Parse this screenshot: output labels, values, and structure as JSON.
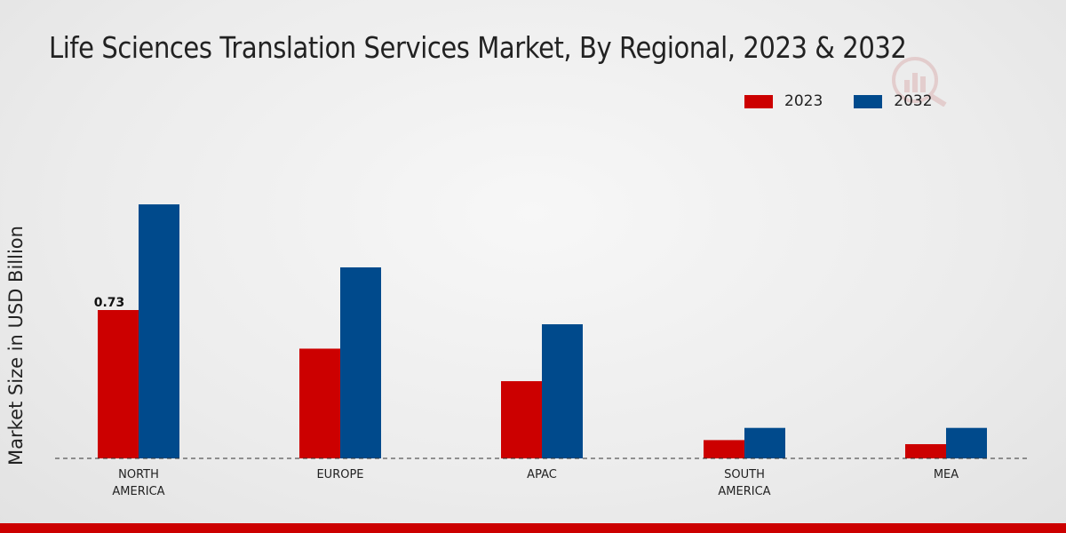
{
  "colors": {
    "series_2023": "#cc0000",
    "series_2032": "#004a8c",
    "accent_bar": "#cc0000"
  },
  "chart_data": {
    "type": "bar",
    "title": "Life Sciences Translation Services Market, By Regional, 2023 & 2032",
    "xlabel": "",
    "ylabel": "Market Size in USD Billion",
    "categories": [
      "NORTH AMERICA",
      "EUROPE",
      "APAC",
      "SOUTH AMERICA",
      "MEA"
    ],
    "category_lines": [
      [
        "NORTH",
        "AMERICA"
      ],
      [
        "EUROPE"
      ],
      [
        "APAC"
      ],
      [
        "SOUTH",
        "AMERICA"
      ],
      [
        "MEA"
      ]
    ],
    "series": [
      {
        "name": "2023",
        "values": [
          0.73,
          0.54,
          0.38,
          0.09,
          0.07
        ]
      },
      {
        "name": "2032",
        "values": [
          1.25,
          0.94,
          0.66,
          0.15,
          0.15
        ]
      }
    ],
    "data_labels": [
      {
        "series": 0,
        "index": 0,
        "text": "0.73"
      }
    ],
    "ylim": [
      0,
      1.6
    ],
    "grid": false,
    "legend_position": "top-right"
  }
}
